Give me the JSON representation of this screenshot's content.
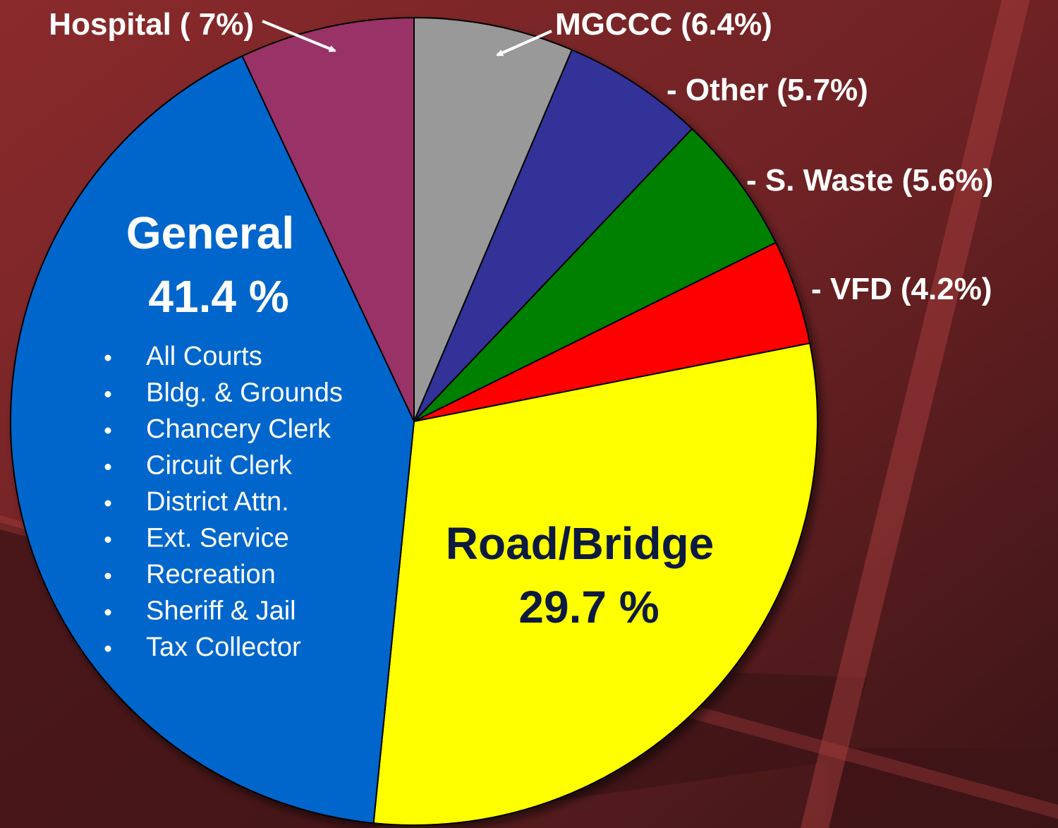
{
  "chart_data": {
    "type": "pie",
    "categories": [
      "MGCCC",
      "- Other",
      "- S. Waste",
      "- VFD",
      "Road/Bridge",
      "General",
      "Hospital"
    ],
    "values": [
      6.4,
      5.7,
      5.6,
      4.2,
      29.7,
      41.4,
      7
    ],
    "value_labels": [
      "(6.4%)",
      "(5.7%)",
      "(5.6%)",
      "(4.2%)",
      "29.7 %",
      "41.4 %",
      "( 7%)"
    ],
    "colors": [
      "#999999",
      "#333399",
      "#008000",
      "#ff0000",
      "#ffff00",
      "#0066cc",
      "#993366"
    ],
    "general_items": [
      "All Courts",
      "Bldg. & Grounds",
      "Chancery Clerk",
      "Circuit Clerk",
      "District Attn.",
      "Ext. Service",
      "Recreation",
      "Sheriff & Jail",
      "Tax Collector"
    ]
  }
}
